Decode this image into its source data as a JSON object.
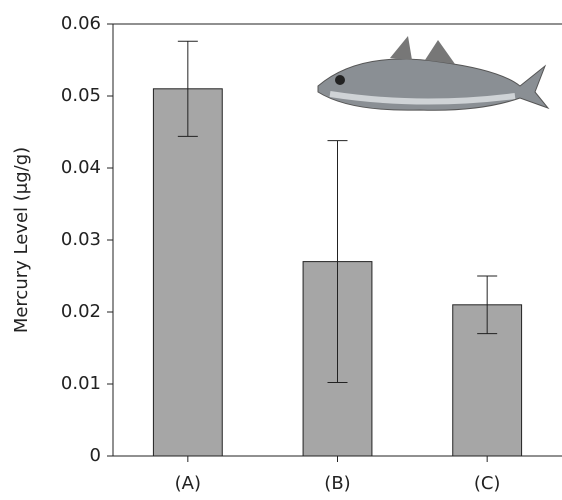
{
  "chart_data": {
    "type": "bar",
    "y_label": "Mercury Level (μg/g)",
    "categories": [
      "(A)",
      "(B)",
      "(C)"
    ],
    "values": [
      0.051,
      0.027,
      0.021
    ],
    "errors": [
      0.0066,
      0.0168,
      0.004
    ],
    "color": "#a6a6a6",
    "ylim": [
      0,
      0.06
    ],
    "yticks": [
      0,
      0.01,
      0.02,
      0.03,
      0.04,
      0.05,
      0.06
    ],
    "grid": false
  }
}
